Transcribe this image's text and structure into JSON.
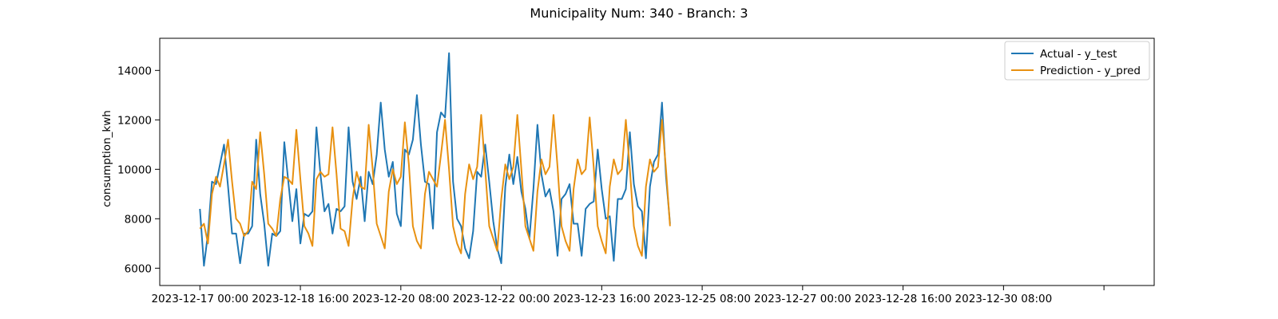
{
  "chart_data": {
    "type": "line",
    "title": "Municipality Num: 340 - Branch: 3",
    "xlabel": "",
    "ylabel": "consumption_kwh",
    "x_start": "2023-12-17 00:00",
    "x_step": "4 hours",
    "xlim": [
      -4,
      95
    ],
    "ylim": [
      5300,
      15300
    ],
    "yticks": [
      6000,
      8000,
      10000,
      12000,
      14000
    ],
    "xtick_positions": [
      0,
      10,
      20,
      30,
      40,
      50,
      60,
      70,
      80,
      90
    ],
    "xtick_labels": [
      "2023-12-17 00:00",
      "2023-12-18 16:00",
      "2023-12-20 08:00",
      "2023-12-22 00:00",
      "2023-12-23 16:00",
      "2023-12-25 08:00",
      "2023-12-27 00:00",
      "2023-12-28 16:00",
      "2023-12-30 08:00",
      ""
    ],
    "grid": false,
    "legend_position": "top-right",
    "series": [
      {
        "name": "Actual - y_test",
        "color": "#1f77b4",
        "values": [
          8400,
          6100,
          7400,
          9500,
          9400,
          10200,
          11000,
          9300,
          7400,
          7400,
          6200,
          7400,
          7400,
          7700,
          11200,
          9000,
          7800,
          6100,
          7400,
          7300,
          7500,
          11100,
          9500,
          7900,
          9200,
          7000,
          8200,
          8100,
          8300,
          11700,
          9800,
          8300,
          8600,
          7400,
          8400,
          8300,
          8500,
          11700,
          9500,
          8800,
          9700,
          7900,
          9900,
          9400,
          10600,
          12700,
          10800,
          9700,
          10300,
          8200,
          7700,
          10800,
          10600,
          11200,
          13000,
          11000,
          9500,
          9400,
          7600,
          11500,
          12300,
          12100,
          14700,
          9500,
          8000,
          7700,
          6800,
          6400,
          7500,
          9900,
          9700,
          11000,
          9500,
          7900,
          6800,
          6200,
          9300,
          10600,
          9400,
          10500,
          9100,
          8400,
          7200,
          9200,
          11800,
          9800,
          8900,
          9200,
          8300,
          6500,
          8800,
          9000,
          9400,
          7800,
          7800,
          6500,
          8400,
          8600,
          8700,
          10800,
          9200,
          8000,
          8100,
          6300,
          8800,
          8800,
          9200,
          11500,
          9400,
          8500,
          8300,
          6400,
          9300,
          10300,
          10600,
          12700,
          9700,
          7800
        ]
      },
      {
        "name": "Prediction - y_pred",
        "color": "#e89111",
        "values": [
          7600,
          7800,
          7000,
          9000,
          9700,
          9300,
          10200,
          11200,
          9500,
          8000,
          7800,
          7300,
          7500,
          9500,
          9200,
          11500,
          9800,
          7800,
          7600,
          7300,
          8800,
          9700,
          9600,
          9400,
          11600,
          9600,
          7700,
          7400,
          6900,
          9600,
          9900,
          9700,
          9800,
          11700,
          9800,
          7600,
          7500,
          6900,
          8800,
          9900,
          9300,
          9200,
          11800,
          10000,
          7800,
          7300,
          6800,
          9100,
          10000,
          9400,
          9700,
          11900,
          10200,
          7700,
          7100,
          6800,
          9000,
          9900,
          9600,
          9300,
          10600,
          12000,
          10000,
          7700,
          7000,
          6600,
          9000,
          10200,
          9600,
          10100,
          12200,
          10000,
          7700,
          7200,
          6700,
          8800,
          10200,
          9600,
          10100,
          12200,
          10000,
          7700,
          7200,
          6700,
          9100,
          10400,
          9800,
          10100,
          12200,
          10100,
          7700,
          7100,
          6700,
          9200,
          10400,
          9800,
          10000,
          12100,
          10100,
          7700,
          7100,
          6600,
          9300,
          10400,
          9800,
          10000,
          12000,
          10000,
          7700,
          6900,
          6500,
          9300,
          10400,
          9900,
          10100,
          12000,
          10000,
          7700
        ]
      }
    ]
  }
}
